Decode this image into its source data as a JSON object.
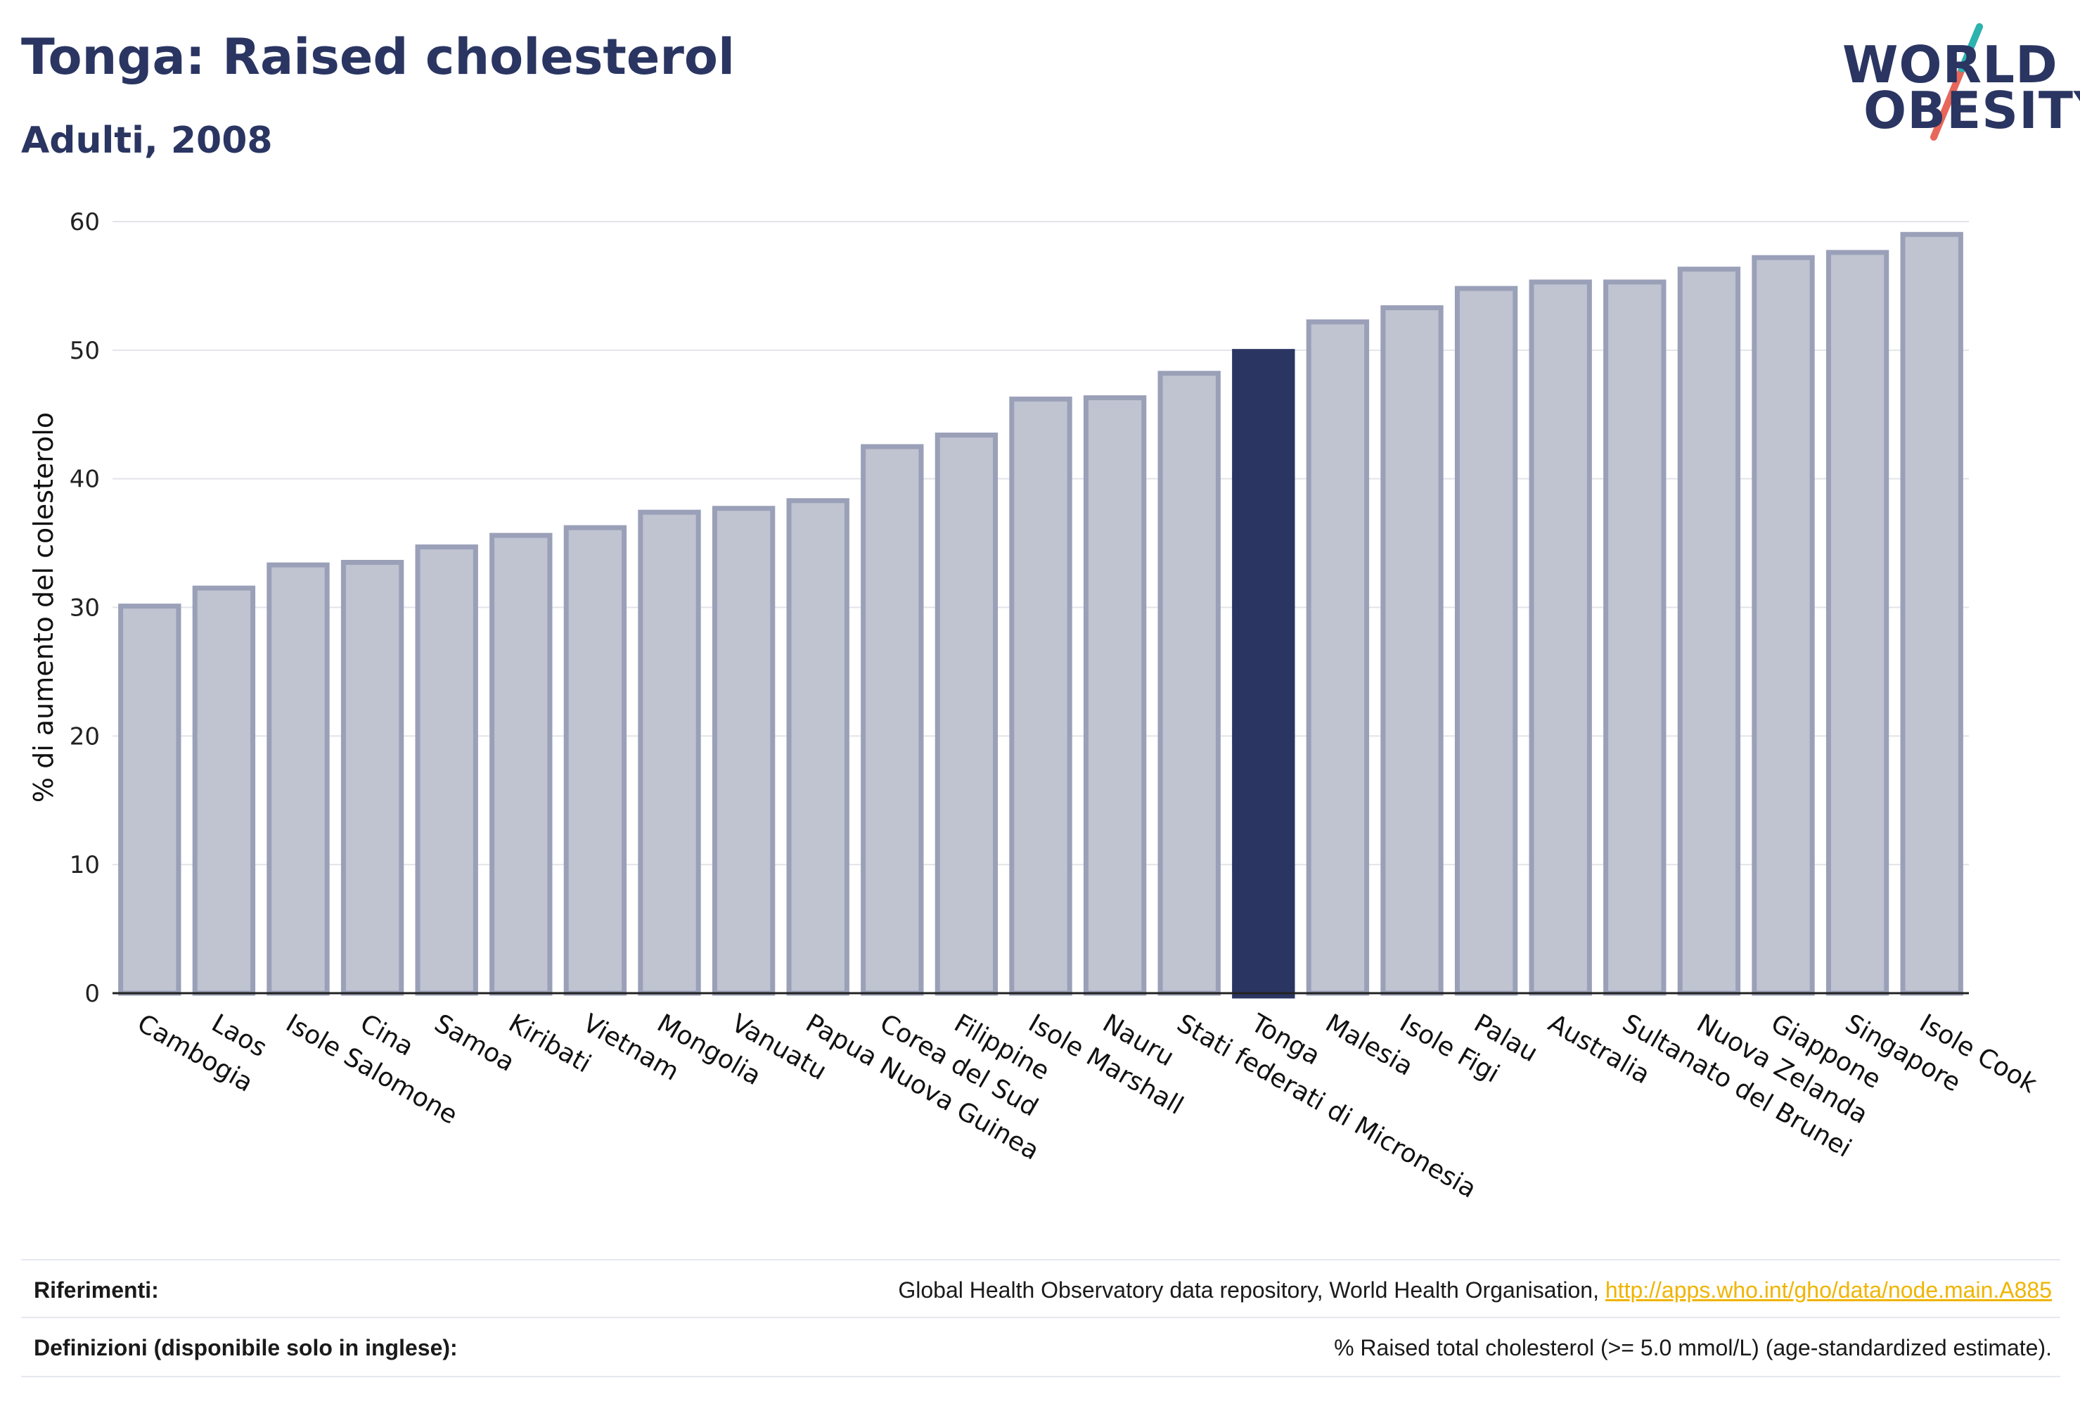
{
  "header": {
    "title": "Tonga: Raised cholesterol",
    "subtitle": "Adulti, 2008"
  },
  "logo": {
    "line1": "WORLD",
    "line2": "OBESITY",
    "accent_teal": "#2bb3b0",
    "accent_red": "#e8665a"
  },
  "colors": {
    "bar": "#c0c3d0",
    "bar_border": "#9aa0b8",
    "highlight": "#2a3562",
    "grid": "#e3e4ea",
    "axis": "#222222"
  },
  "chart_data": {
    "type": "bar",
    "ylabel": "% di aumento del colesterolo",
    "xlabel": "",
    "ylim": [
      0,
      60
    ],
    "yticks": [
      0,
      10,
      20,
      30,
      40,
      50,
      60
    ],
    "highlight": "Tonga",
    "grid": true,
    "categories": [
      "Cambogia",
      "Laos",
      "Isole Salomone",
      "Cina",
      "Samoa",
      "Kiribati",
      "Vietnam",
      "Mongolia",
      "Vanuatu",
      "Papua Nuova Guinea",
      "Corea del Sud",
      "Filippine",
      "Isole Marshall",
      "Nauru",
      "Stati federati di Micronesia",
      "Tonga",
      "Malesia",
      "Isole Figi",
      "Palau",
      "Australia",
      "Sultanato del Brunei",
      "Nuova Zelanda",
      "Giappone",
      "Singapore",
      "Isole Cook"
    ],
    "values": [
      30.1,
      31.5,
      33.3,
      33.5,
      34.7,
      35.6,
      36.2,
      37.4,
      37.7,
      38.3,
      42.5,
      43.4,
      46.2,
      46.3,
      48.2,
      49.9,
      52.2,
      53.3,
      54.8,
      55.3,
      55.3,
      56.3,
      57.2,
      57.6,
      59.0
    ]
  },
  "footer": {
    "references_label": "Riferimenti:",
    "references_text": "Global Health Observatory data repository, World Health Organisation, ",
    "references_link": "http://apps.who.int/gho/data/node.main.A885",
    "definitions_label": "Definizioni (disponibile solo in inglese):",
    "definitions_text": "% Raised total cholesterol (>= 5.0 mmol/L) (age-standardized estimate)."
  }
}
